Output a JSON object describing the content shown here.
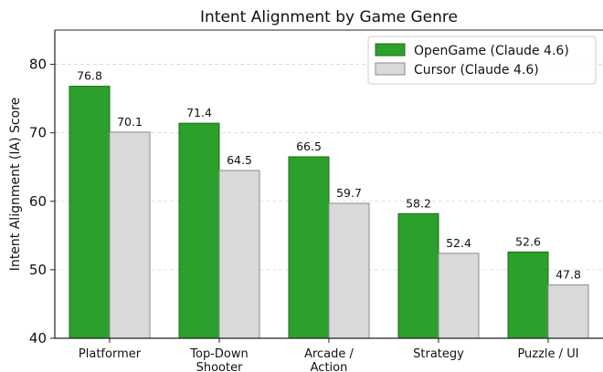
{
  "chart_data": {
    "type": "bar",
    "title": "Intent Alignment by Game Genre",
    "xlabel": "",
    "ylabel": "Intent Alignment (IA) Score",
    "categories": [
      [
        "Platformer"
      ],
      [
        "Top-Down",
        "Shooter"
      ],
      [
        "Arcade /",
        "Action"
      ],
      [
        "Strategy"
      ],
      [
        "Puzzle / UI"
      ]
    ],
    "series": [
      {
        "name": "OpenGame (Claude 4.6)",
        "values": [
          76.8,
          71.4,
          66.5,
          58.2,
          52.6
        ],
        "color": "#2ca02c",
        "edge": "#1e6b1e"
      },
      {
        "name": "Cursor (Claude 4.6)",
        "values": [
          70.1,
          64.5,
          59.7,
          52.4,
          47.8
        ],
        "color": "#d9d9d9",
        "edge": "#8a8a8a"
      }
    ],
    "ylim": [
      40,
      85
    ],
    "yticks": [
      40,
      50,
      60,
      70,
      80
    ],
    "grid": true,
    "legend_position": "top-right"
  }
}
